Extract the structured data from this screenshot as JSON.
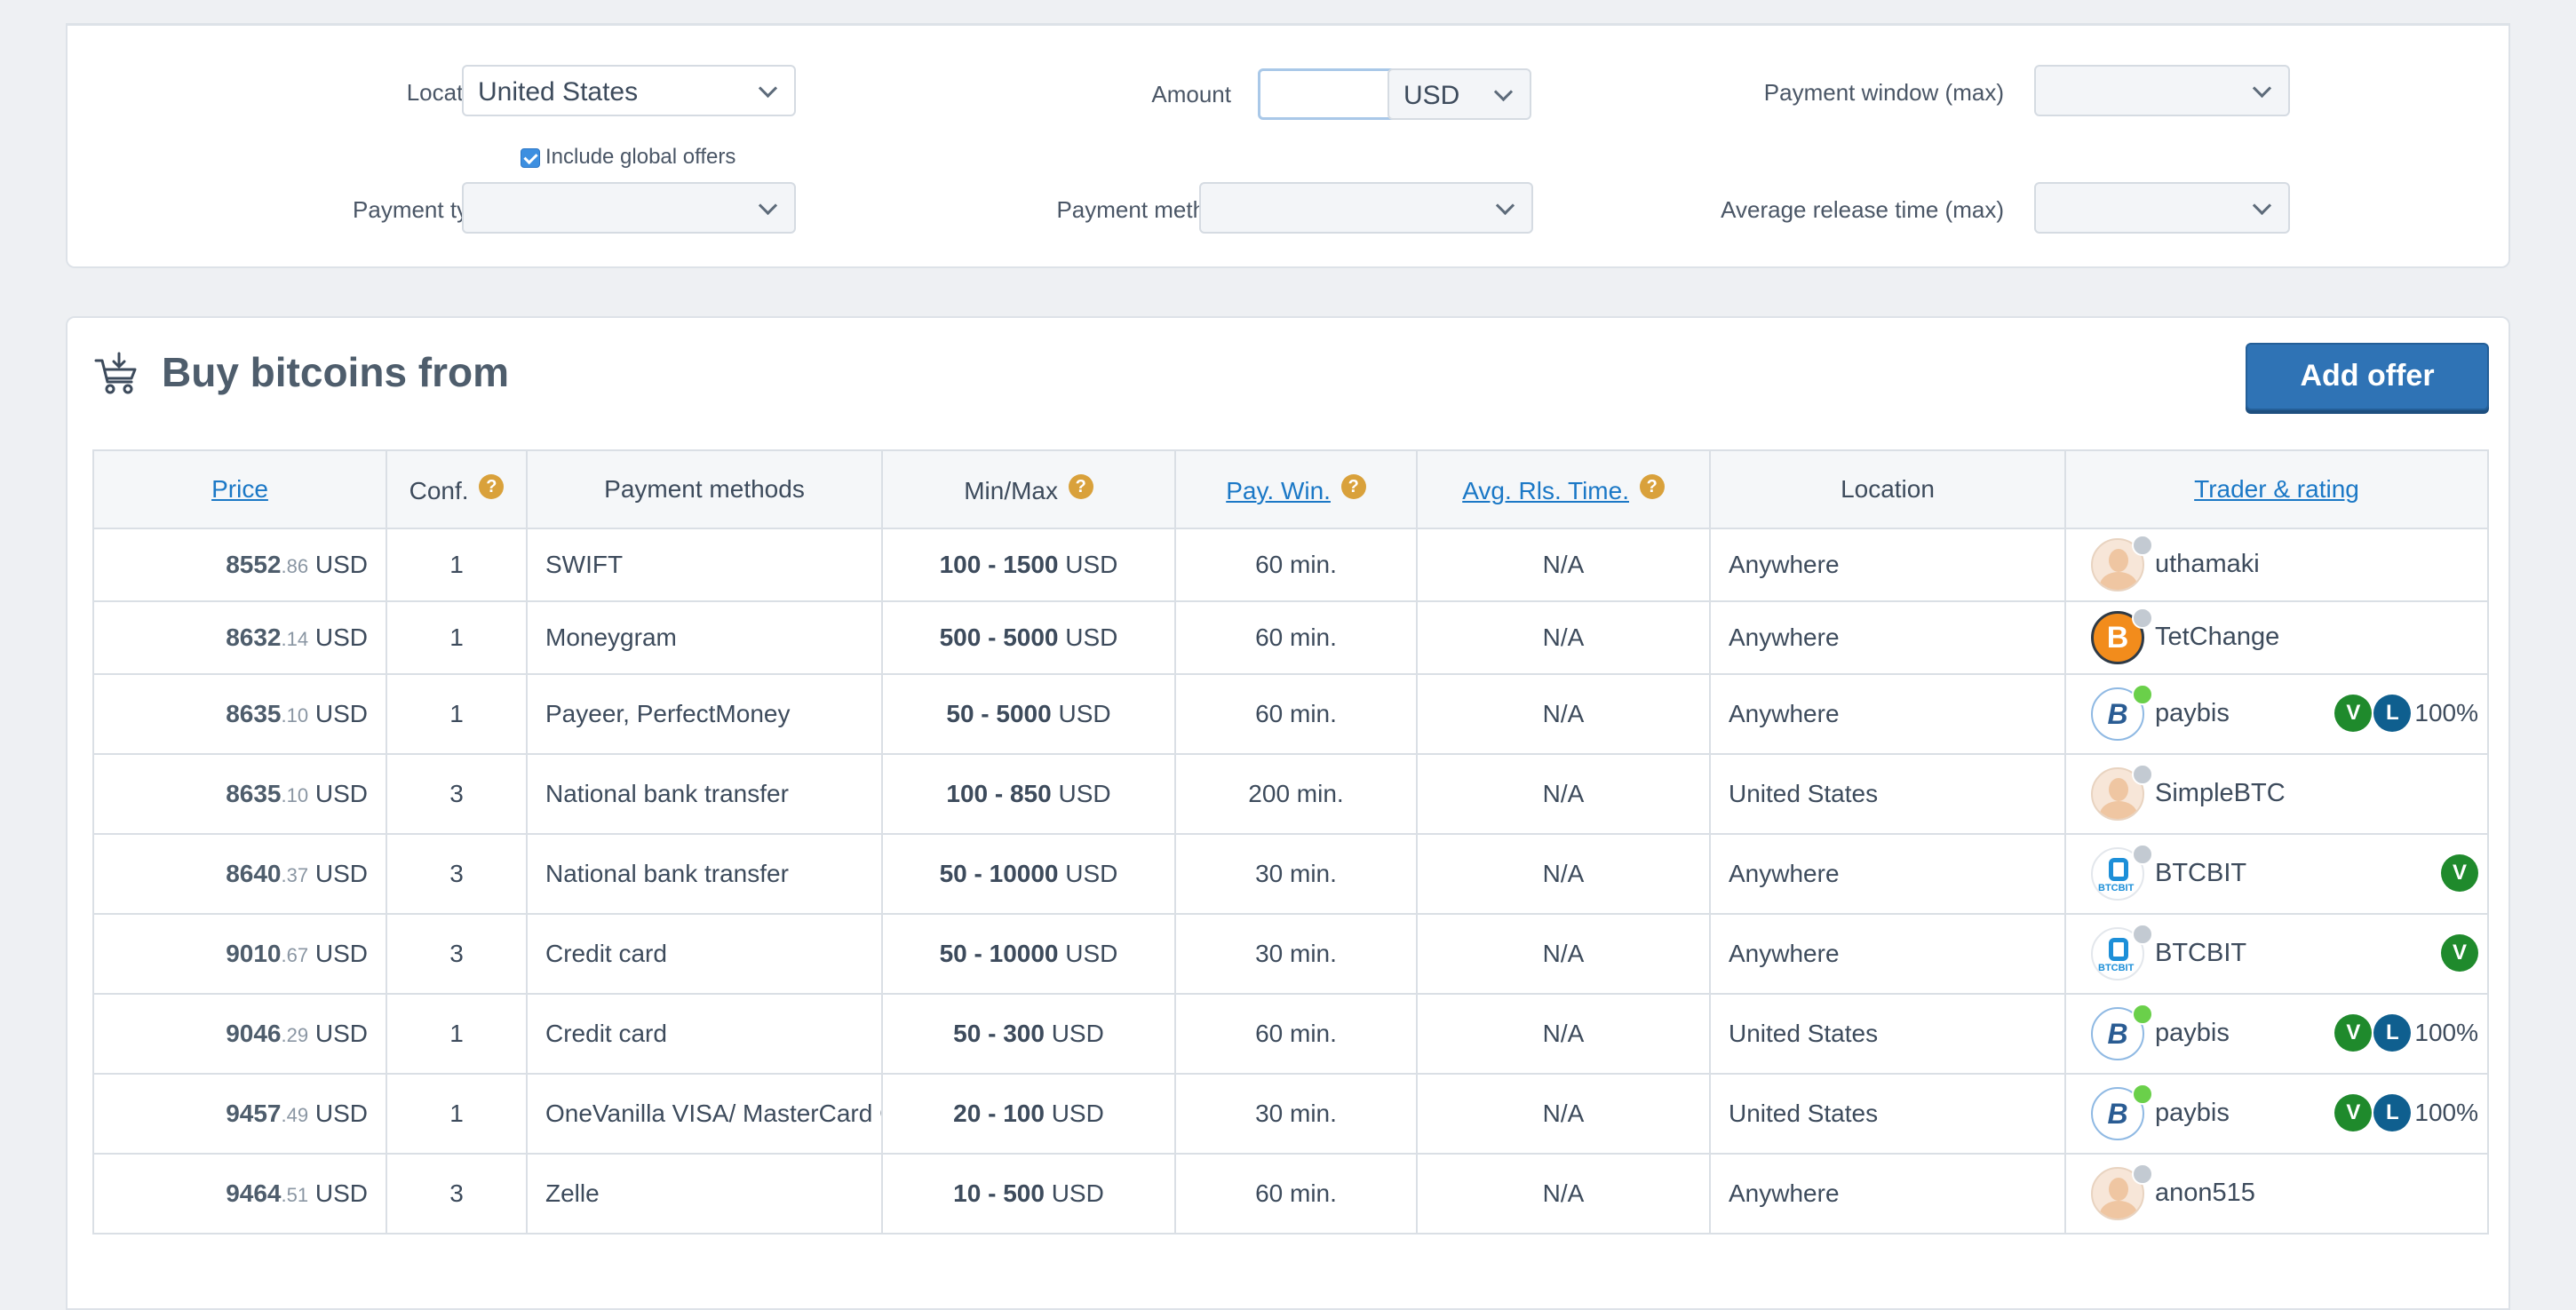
{
  "filters": {
    "location_label": "Location",
    "location_value": "United States",
    "include_global_label": "Include global offers",
    "amount_label": "Amount",
    "amount_value": "",
    "currency_value": "USD",
    "payment_window_label": "Payment window (max)",
    "payment_window_value": "",
    "payment_type_label": "Payment type",
    "payment_type_value": "",
    "payment_method_label": "Payment method",
    "payment_method_value": "",
    "avg_release_label": "Average release time (max)",
    "avg_release_value": ""
  },
  "main": {
    "title": "Buy bitcoins from",
    "add_offer_label": "Add offer"
  },
  "table": {
    "headers": {
      "price": "Price",
      "conf": "Conf.",
      "payment_methods": "Payment methods",
      "minmax": "Min/Max",
      "pay_win": "Pay. Win.",
      "avg_rls": "Avg. Rls. Time.",
      "location": "Location",
      "trader": "Trader & rating"
    },
    "help_glyph": "?",
    "rows": [
      {
        "price_int": "8552",
        "price_dec": ".86",
        "currency": "USD",
        "conf": "1",
        "method": "SWIFT",
        "range": "100 - 1500",
        "range_cur": "USD",
        "pay_win": "60 min.",
        "avg_rls": "N/A",
        "location": "Anywhere",
        "trader": "uthamaki",
        "avatar": "person",
        "online": false,
        "verified": "",
        "lic": "",
        "pct": ""
      },
      {
        "price_int": "8632",
        "price_dec": ".14",
        "currency": "USD",
        "conf": "1",
        "method": "Moneygram",
        "range": "500 - 5000",
        "range_cur": "USD",
        "pay_win": "60 min.",
        "avg_rls": "N/A",
        "location": "Anywhere",
        "trader": "TetChange",
        "avatar": "btc",
        "online": false,
        "verified": "",
        "lic": "",
        "pct": ""
      },
      {
        "price_int": "8635",
        "price_dec": ".10",
        "currency": "USD",
        "conf": "1",
        "method": "Payeer, PerfectMoney",
        "range": "50 - 5000",
        "range_cur": "USD",
        "pay_win": "60 min.",
        "avg_rls": "N/A",
        "location": "Anywhere",
        "trader": "paybis",
        "avatar": "pb",
        "online": true,
        "verified": "V",
        "lic": "L",
        "pct": "100%"
      },
      {
        "price_int": "8635",
        "price_dec": ".10",
        "currency": "USD",
        "conf": "3",
        "method": "National bank transfer",
        "range": "100 - 850",
        "range_cur": "USD",
        "pay_win": "200 min.",
        "avg_rls": "N/A",
        "location": "United States",
        "trader": "SimpleBTC",
        "avatar": "person",
        "online": false,
        "verified": "",
        "lic": "",
        "pct": ""
      },
      {
        "price_int": "8640",
        "price_dec": ".37",
        "currency": "USD",
        "conf": "3",
        "method": "National bank transfer",
        "range": "50 - 10000",
        "range_cur": "USD",
        "pay_win": "30 min.",
        "avg_rls": "N/A",
        "location": "Anywhere",
        "trader": "BTCBIT",
        "avatar": "bb",
        "online": false,
        "verified": "V",
        "lic": "",
        "pct": ""
      },
      {
        "price_int": "9010",
        "price_dec": ".67",
        "currency": "USD",
        "conf": "3",
        "method": "Credit card",
        "range": "50 - 10000",
        "range_cur": "USD",
        "pay_win": "30 min.",
        "avg_rls": "N/A",
        "location": "Anywhere",
        "trader": "BTCBIT",
        "avatar": "bb",
        "online": false,
        "verified": "V",
        "lic": "",
        "pct": ""
      },
      {
        "price_int": "9046",
        "price_dec": ".29",
        "currency": "USD",
        "conf": "1",
        "method": "Credit card",
        "range": "50 - 300",
        "range_cur": "USD",
        "pay_win": "60 min.",
        "avg_rls": "N/A",
        "location": "United States",
        "trader": "paybis",
        "avatar": "pb",
        "online": true,
        "verified": "V",
        "lic": "L",
        "pct": "100%"
      },
      {
        "price_int": "9457",
        "price_dec": ".49",
        "currency": "USD",
        "conf": "1",
        "method": "OneVanilla VISA/ MasterCard G",
        "range": "20 - 100",
        "range_cur": "USD",
        "pay_win": "30 min.",
        "avg_rls": "N/A",
        "location": "United States",
        "trader": "paybis",
        "avatar": "pb",
        "online": true,
        "verified": "V",
        "lic": "L",
        "pct": "100%"
      },
      {
        "price_int": "9464",
        "price_dec": ".51",
        "currency": "USD",
        "conf": "3",
        "method": "Zelle",
        "range": "10 - 500",
        "range_cur": "USD",
        "pay_win": "60 min.",
        "avg_rls": "N/A",
        "location": "Anywhere",
        "trader": "anon515",
        "avatar": "person",
        "online": false,
        "verified": "",
        "lic": "",
        "pct": ""
      }
    ]
  },
  "avatar_glyphs": {
    "btc": "B",
    "pb": "B",
    "bb": "BTCBIT"
  }
}
